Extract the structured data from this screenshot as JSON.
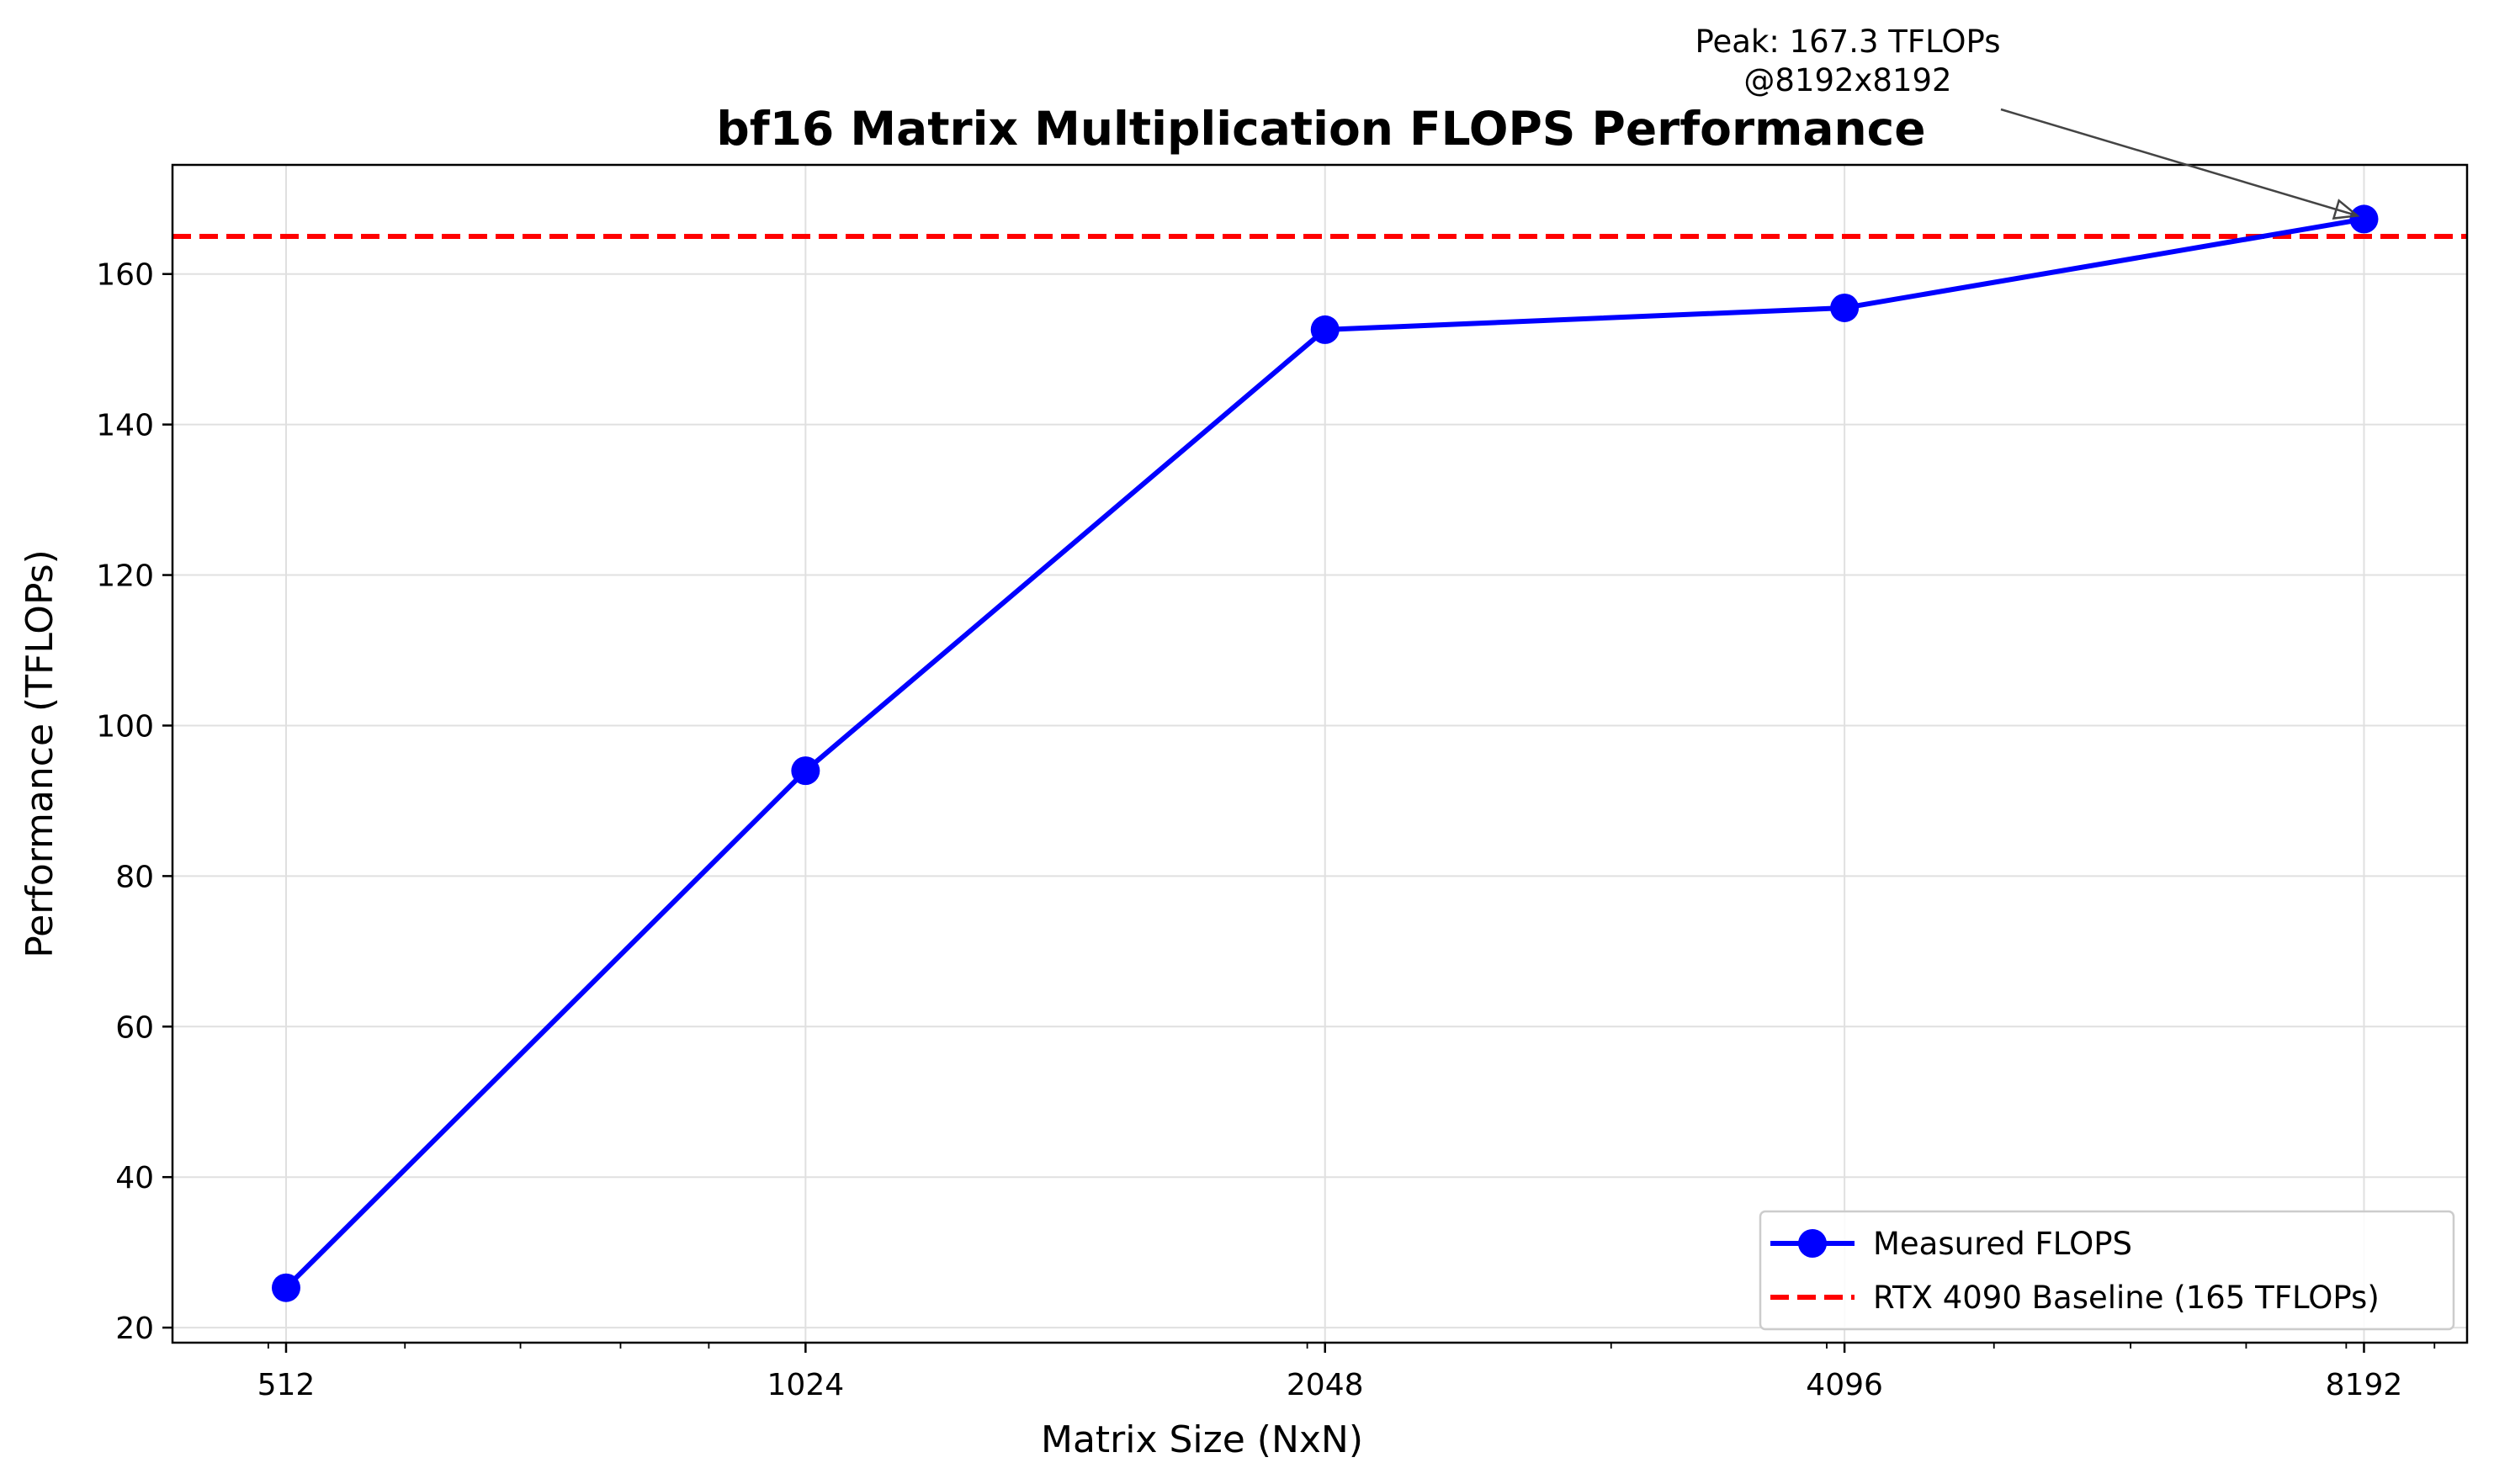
{
  "chart_data": {
    "type": "line",
    "title": "bf16 Matrix Multiplication FLOPS Performance",
    "xlabel": "Matrix Size (NxN)",
    "ylabel": "Performance (TFLOPs)",
    "x_scale": "log2",
    "x": [
      512,
      1024,
      2048,
      4096,
      8192
    ],
    "x_tick_labels": [
      "512",
      "1024",
      "2048",
      "4096",
      "8192"
    ],
    "xlim": [
      440,
      9400
    ],
    "ylim": [
      18,
      174.5
    ],
    "y_ticks": [
      20,
      40,
      60,
      80,
      100,
      120,
      140,
      160
    ],
    "y_tick_labels": [
      "20",
      "40",
      "60",
      "80",
      "100",
      "120",
      "140",
      "160"
    ],
    "grid": true,
    "series": [
      {
        "name": "Measured FLOPS",
        "values": [
          25.3,
          94.0,
          152.6,
          155.5,
          167.3
        ],
        "color": "#0000ff",
        "style": "solid",
        "marker": "circle"
      }
    ],
    "baseline": {
      "name": "RTX 4090 Baseline (165 TFLOPs)",
      "value": 165,
      "color": "#ff0000",
      "style": "dashed"
    },
    "annotation": {
      "lines": [
        "Peak: 167.3 TFLOPs",
        "@8192x8192"
      ],
      "x": 8192,
      "y": 167.3
    },
    "legend": {
      "position": "bottom-right",
      "entries": [
        "Measured FLOPS",
        "RTX 4090 Baseline (165 TFLOPs)"
      ]
    }
  }
}
